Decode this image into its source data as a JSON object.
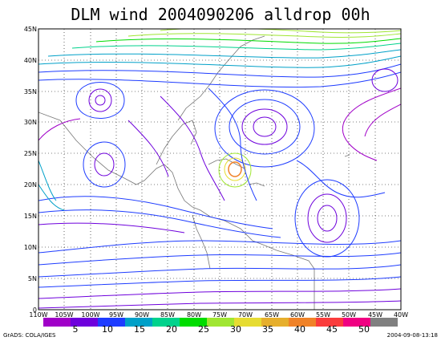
{
  "title": "DLM wind 2004090206 alldrop 00h",
  "lat_labels": [
    "0",
    "5N",
    "10N",
    "15N",
    "20N",
    "25N",
    "30N",
    "35N",
    "40N",
    "45N"
  ],
  "lon_labels": [
    "110W",
    "105W",
    "100W",
    "95W",
    "90W",
    "85W",
    "80W",
    "75W",
    "70W",
    "65W",
    "60W",
    "55W",
    "50W",
    "45W",
    "40W"
  ],
  "colorbar": {
    "labels": [
      "5",
      "10",
      "15",
      "20",
      "25",
      "30",
      "35",
      "40",
      "45",
      "50"
    ],
    "colors": [
      "#a000c8",
      "#6e00dc",
      "#1e3cff",
      "#00a0c8",
      "#00d28c",
      "#00dc00",
      "#a0e632",
      "#e6dc32",
      "#e6af2d",
      "#f08228",
      "#fa3c3c",
      "#f00082",
      "#808080"
    ]
  },
  "credit": "GrADS: COLA/IGES",
  "timestamp": "2004-09-08-13:18"
}
